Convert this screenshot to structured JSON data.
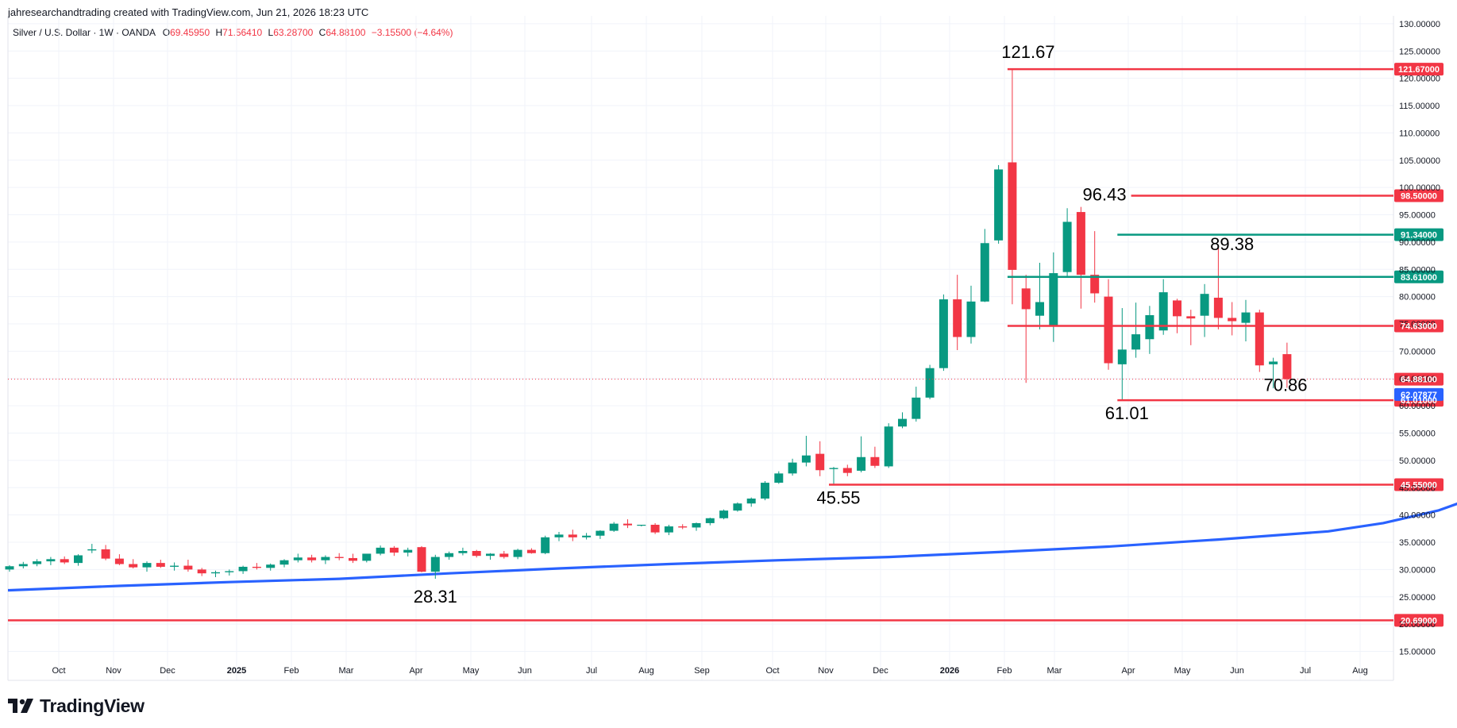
{
  "header": {
    "attribution": "jahresearchandtrading created with TradingView.com, Jun 21, 2026 18:23 UTC"
  },
  "legend": {
    "symbol": "Silver / U.S. Dollar · 1W · OANDA",
    "o_label": "O",
    "o_value": "69.45950",
    "h_label": "H",
    "h_value": "71.56410",
    "l_label": "L",
    "l_value": "63.28700",
    "c_label": "C",
    "c_value": "64.88100",
    "change": "−3.15500 (−4.64%)"
  },
  "logo": {
    "text": "TradingView",
    "icon": "tradingview-logo-icon"
  },
  "colors": {
    "up": "#089981",
    "down": "#f23645",
    "ma": "#2962ff",
    "level_red": "#f23645",
    "level_green": "#089981",
    "grid": "#f0f3fa",
    "axis_text": "#131722"
  },
  "chart_data": {
    "type": "candlestick",
    "timeframe": "1W",
    "ylim": [
      12,
      131
    ],
    "y_ticks": [
      "130.00000",
      "125.00000",
      "120.00000",
      "115.00000",
      "110.00000",
      "105.00000",
      "100.00000",
      "95.00000",
      "90.00000",
      "85.00000",
      "80.00000",
      "75.00000",
      "70.00000",
      "65.00000",
      "60.00000",
      "55.00000",
      "50.00000",
      "45.00000",
      "40.00000",
      "35.00000",
      "30.00000",
      "25.00000",
      "20.00000",
      "15.00000"
    ],
    "x_ticks": [
      "Oct",
      "Nov",
      "Dec",
      "2025",
      "Feb",
      "Mar",
      "Apr",
      "May",
      "Jun",
      "Jul",
      "Aug",
      "Sep",
      "Oct",
      "Nov",
      "Dec",
      "2026",
      "Feb",
      "Mar",
      "Apr",
      "May",
      "Jun",
      "Jul",
      "Aug"
    ],
    "candles": [
      [
        30.0,
        30.8,
        29.6,
        30.6
      ],
      [
        30.6,
        31.4,
        30.2,
        31.0
      ],
      [
        31.0,
        31.9,
        30.6,
        31.5
      ],
      [
        31.5,
        32.3,
        30.8,
        31.9
      ],
      [
        31.9,
        32.4,
        31.0,
        31.3
      ],
      [
        31.2,
        32.8,
        30.7,
        32.6
      ],
      [
        33.5,
        34.7,
        33.0,
        33.7
      ],
      [
        33.7,
        34.5,
        31.7,
        32.0
      ],
      [
        32.0,
        32.8,
        30.8,
        31.0
      ],
      [
        31.0,
        31.9,
        30.2,
        30.4
      ],
      [
        30.4,
        31.5,
        29.6,
        31.2
      ],
      [
        31.2,
        31.8,
        30.3,
        30.5
      ],
      [
        30.5,
        31.3,
        29.8,
        30.7
      ],
      [
        30.7,
        31.8,
        29.6,
        30.0
      ],
      [
        30.0,
        30.3,
        28.8,
        29.3
      ],
      [
        29.3,
        29.8,
        28.6,
        29.5
      ],
      [
        29.5,
        30.0,
        28.9,
        29.7
      ],
      [
        29.7,
        30.7,
        29.2,
        30.5
      ],
      [
        30.5,
        31.2,
        30.0,
        30.3
      ],
      [
        30.3,
        31.1,
        29.8,
        30.9
      ],
      [
        30.9,
        31.9,
        30.4,
        31.7
      ],
      [
        31.7,
        32.9,
        31.3,
        32.2
      ],
      [
        32.2,
        32.7,
        31.3,
        31.7
      ],
      [
        31.7,
        32.6,
        31.0,
        32.3
      ],
      [
        32.3,
        33.0,
        31.7,
        32.1
      ],
      [
        32.1,
        32.9,
        31.2,
        31.6
      ],
      [
        31.6,
        32.8,
        31.3,
        32.9
      ],
      [
        32.9,
        34.4,
        32.6,
        34.0
      ],
      [
        34.0,
        34.3,
        32.5,
        33.1
      ],
      [
        33.1,
        34.0,
        32.4,
        33.6
      ],
      [
        34.1,
        34.3,
        29.5,
        29.6
      ],
      [
        29.6,
        32.7,
        28.31,
        32.3
      ],
      [
        32.3,
        33.3,
        31.8,
        33.0
      ],
      [
        33.0,
        34.0,
        32.6,
        33.4
      ],
      [
        33.4,
        33.6,
        32.2,
        32.5
      ],
      [
        32.5,
        33.0,
        31.8,
        32.9
      ],
      [
        32.9,
        33.4,
        32.0,
        32.3
      ],
      [
        32.3,
        33.8,
        31.9,
        33.6
      ],
      [
        33.6,
        33.9,
        32.9,
        33.0
      ],
      [
        33.0,
        36.2,
        32.8,
        35.9
      ],
      [
        35.9,
        36.9,
        35.2,
        36.4
      ],
      [
        36.4,
        37.3,
        35.2,
        35.9
      ],
      [
        35.9,
        36.7,
        35.5,
        36.2
      ],
      [
        36.2,
        37.2,
        35.6,
        37.1
      ],
      [
        37.1,
        38.7,
        36.9,
        38.4
      ],
      [
        38.4,
        39.2,
        37.6,
        38.1
      ],
      [
        38.1,
        38.2,
        37.9,
        38.2
      ],
      [
        38.2,
        38.5,
        36.5,
        36.8
      ],
      [
        36.8,
        38.2,
        36.3,
        37.9
      ],
      [
        37.9,
        38.3,
        37.4,
        37.7
      ],
      [
        37.7,
        38.6,
        37.1,
        38.5
      ],
      [
        38.5,
        39.5,
        38.1,
        39.4
      ],
      [
        39.4,
        41.0,
        39.2,
        40.8
      ],
      [
        40.8,
        42.3,
        40.6,
        42.1
      ],
      [
        42.1,
        43.2,
        41.5,
        43.0
      ],
      [
        43.0,
        46.2,
        42.7,
        45.9
      ],
      [
        45.9,
        48.0,
        45.7,
        47.6
      ],
      [
        47.6,
        50.3,
        47.2,
        49.6
      ],
      [
        49.6,
        54.5,
        48.9,
        50.9
      ],
      [
        51.2,
        53.5,
        47.1,
        48.2
      ],
      [
        48.4,
        48.8,
        45.55,
        48.6
      ],
      [
        48.6,
        49.2,
        47.1,
        47.7
      ],
      [
        48.1,
        54.4,
        47.8,
        50.6
      ],
      [
        50.6,
        52.5,
        48.6,
        49.0
      ],
      [
        48.9,
        56.8,
        48.6,
        56.2
      ],
      [
        56.2,
        58.8,
        55.9,
        57.6
      ],
      [
        57.6,
        63.5,
        57.1,
        61.5
      ],
      [
        61.5,
        67.5,
        61.2,
        66.9
      ],
      [
        66.9,
        80.4,
        66.4,
        79.5
      ],
      [
        79.5,
        84.0,
        70.2,
        72.6
      ],
      [
        72.6,
        82.0,
        71.4,
        79.1
      ],
      [
        79.1,
        92.4,
        79.0,
        89.8
      ],
      [
        90.3,
        104.1,
        89.7,
        103.3
      ],
      [
        104.6,
        121.67,
        78.6,
        84.9
      ],
      [
        81.5,
        84.0,
        64.2,
        77.7
      ],
      [
        76.5,
        86.2,
        74.0,
        79.0
      ],
      [
        74.6,
        88.1,
        71.7,
        84.3
      ],
      [
        84.5,
        96.2,
        83.8,
        93.7
      ],
      [
        95.5,
        96.43,
        77.8,
        84.0
      ],
      [
        84.0,
        92.0,
        78.9,
        80.6
      ],
      [
        80.0,
        83.2,
        66.6,
        67.8
      ],
      [
        67.6,
        77.9,
        61.01,
        70.3
      ],
      [
        70.3,
        78.9,
        68.8,
        73.1
      ],
      [
        72.2,
        78.3,
        69.5,
        76.6
      ],
      [
        73.8,
        83.2,
        73.0,
        80.8
      ],
      [
        79.3,
        79.6,
        73.3,
        76.4
      ],
      [
        76.4,
        77.6,
        71.1,
        76.0
      ],
      [
        76.5,
        82.3,
        72.6,
        80.5
      ],
      [
        79.8,
        89.38,
        74.0,
        76.1
      ],
      [
        76.1,
        79.0,
        72.9,
        75.5
      ],
      [
        75.2,
        79.4,
        71.8,
        77.1
      ],
      [
        77.1,
        77.6,
        66.2,
        67.4
      ],
      [
        67.6,
        68.8,
        63.2,
        68.1
      ],
      [
        69.4595,
        71.5641,
        63.287,
        64.881
      ]
    ],
    "moving_average": [
      [
        0,
        26.2
      ],
      [
        8,
        27.0
      ],
      [
        16,
        27.7
      ],
      [
        24,
        28.3
      ],
      [
        32,
        29.3
      ],
      [
        40,
        30.2
      ],
      [
        48,
        31.0
      ],
      [
        56,
        31.7
      ],
      [
        64,
        32.3
      ],
      [
        72,
        33.2
      ],
      [
        80,
        34.2
      ],
      [
        88,
        35.5
      ],
      [
        96,
        37.0
      ],
      [
        100,
        38.5
      ],
      [
        104,
        40.8
      ],
      [
        107,
        43.5
      ],
      [
        110,
        45.9
      ],
      [
        113,
        48.1
      ],
      [
        116,
        50.4
      ],
      [
        120,
        52.5
      ],
      [
        124,
        54.8
      ],
      [
        128,
        57.2
      ],
      [
        132,
        59.4
      ],
      [
        136,
        61.0
      ],
      [
        137,
        61.6
      ],
      [
        140,
        62.07877
      ]
    ],
    "levels": [
      {
        "value": 121.67,
        "axis_label": "121.67000",
        "color": "red",
        "from_index": 73,
        "label": "121.67",
        "label_pos": "above"
      },
      {
        "value": 98.5,
        "axis_label": "98.50000",
        "color": "red",
        "from_index": 82,
        "label": "96.43",
        "label_pos": "left"
      },
      {
        "value": 91.34,
        "axis_label": "91.34000",
        "color": "green",
        "from_index": 81,
        "label": "",
        "label_pos": ""
      },
      {
        "value": 83.61,
        "axis_label": "83.61000",
        "color": "green",
        "from_index": 73,
        "label": "",
        "label_pos": ""
      },
      {
        "value": 74.63,
        "axis_label": "74.63000",
        "color": "red",
        "from_index": 73,
        "label": "",
        "label_pos": ""
      },
      {
        "value": 61.01,
        "axis_label": "61.01000",
        "color": "red",
        "from_index": 81,
        "label": "61.01",
        "label_pos": "below"
      },
      {
        "value": 45.55,
        "axis_label": "45.55000",
        "color": "red",
        "from_index": 60,
        "label": "45.55",
        "label_pos": "below"
      },
      {
        "value": 20.69,
        "axis_label": "20.69000",
        "color": "red",
        "from_index": -1,
        "label": "",
        "label_pos": ""
      }
    ],
    "annotations": [
      {
        "text": "28.31",
        "index": 31,
        "value": 28.31,
        "pos": "below"
      },
      {
        "text": "89.38",
        "index": 89,
        "value": 89.38,
        "pos": "above"
      },
      {
        "text": "70.86",
        "index": 90,
        "value": 70.86,
        "pos": "left"
      }
    ],
    "last_price": {
      "value": 64.881,
      "label": "64.88100"
    },
    "ma_value": {
      "value": 62.07877,
      "label": "62.07877"
    }
  }
}
